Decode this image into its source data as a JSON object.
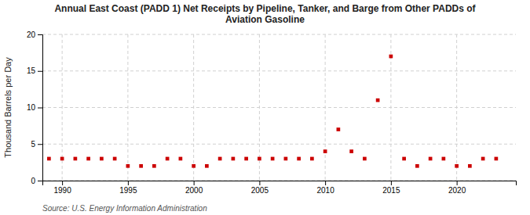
{
  "chart_data": {
    "type": "scatter",
    "title": "Annual East Coast (PADD 1) Net Receipts by Pipeline, Tanker, and Barge from Other PADDs of\nAviation Gasoline",
    "y_label": "Thousand Barrels per Day",
    "source": "Source: U.S. Energy Information Administration",
    "x": [
      1989,
      1990,
      1991,
      1992,
      1993,
      1994,
      1995,
      1996,
      1997,
      1998,
      1999,
      2000,
      2001,
      2002,
      2003,
      2004,
      2005,
      2006,
      2007,
      2008,
      2009,
      2010,
      2011,
      2012,
      2013,
      2014,
      2015,
      2016,
      2017,
      2018,
      2019,
      2020,
      2021,
      2022,
      2023
    ],
    "values": [
      3,
      3,
      3,
      3,
      3,
      3,
      2,
      2,
      2,
      3,
      3,
      2,
      2,
      3,
      3,
      3,
      3,
      3,
      3,
      3,
      3,
      4,
      7,
      4,
      3,
      11,
      17,
      3,
      2,
      3,
      3,
      2,
      2,
      3,
      3
    ],
    "color": "#cc0000",
    "marker": "square",
    "xlim": [
      1988.5,
      2024.5
    ],
    "xticks": [
      1990,
      1995,
      2000,
      2005,
      2010,
      2015,
      2020
    ],
    "ylim": [
      0,
      20
    ],
    "yticks": [
      0,
      5,
      10,
      15,
      20
    ],
    "grid": true
  }
}
